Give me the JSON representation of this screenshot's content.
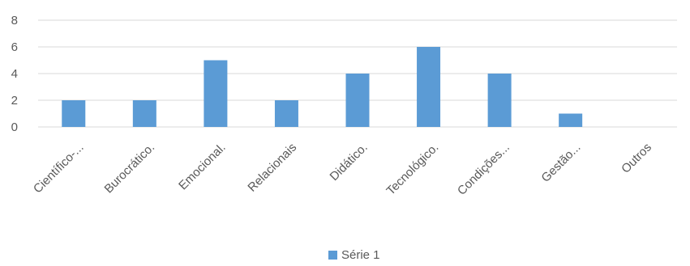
{
  "chart_data": {
    "type": "bar",
    "title": "",
    "xlabel": "",
    "ylabel": "",
    "categories": [
      "Científico-...",
      "Burocrático.",
      "Emocional.",
      "Relacionais",
      "Didático.",
      "Tecnológico.",
      "Condições...",
      "Gestão...",
      "Outros"
    ],
    "series": [
      {
        "name": "Série 1",
        "values": [
          2,
          2,
          5,
          2,
          4,
          6,
          4,
          1,
          0
        ],
        "color": "#5b9bd5"
      }
    ],
    "ylim": [
      0,
      8
    ],
    "yticks": [
      0,
      2,
      4,
      6,
      8
    ],
    "grid": true,
    "grid_color": "#d9d9d9",
    "legend_position": "bottom"
  }
}
